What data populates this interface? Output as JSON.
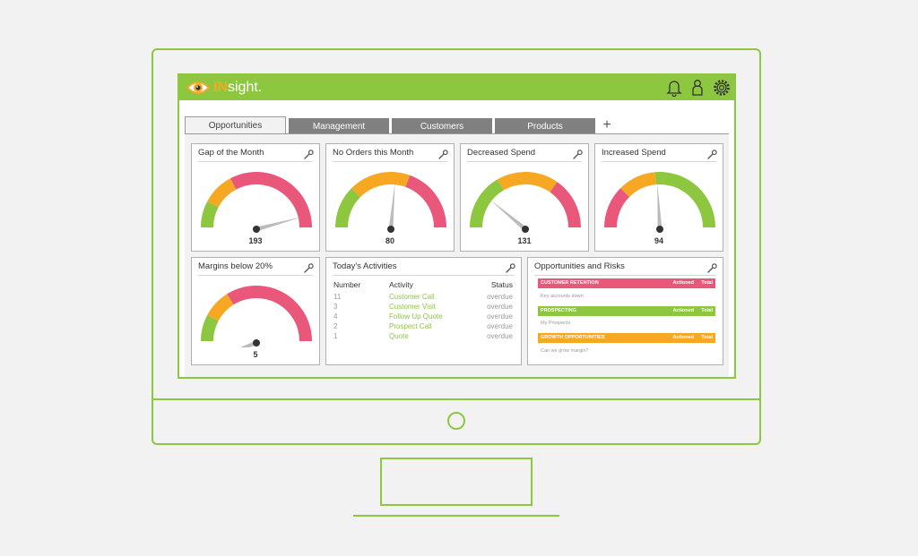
{
  "app": {
    "logo_prefix": "IN",
    "logo_suffix": "sight."
  },
  "header_icons": [
    "bell-icon",
    "user-icon",
    "gear-icon"
  ],
  "tabs": [
    {
      "label": "Opportunities",
      "active": true
    },
    {
      "label": "Management",
      "active": false
    },
    {
      "label": "Customers",
      "active": false
    },
    {
      "label": "Products",
      "active": false
    }
  ],
  "add_tab_label": "+",
  "gauges": [
    {
      "title": "Gap of the Month",
      "value": "193"
    },
    {
      "title": "No Orders this Month",
      "value": "80"
    },
    {
      "title": "Decreased Spend",
      "value": "131"
    },
    {
      "title": "Increased Spend",
      "value": "94"
    },
    {
      "title": "Margins below 20%",
      "value": "5"
    }
  ],
  "activities": {
    "title": "Today's Activities",
    "headers": {
      "number": "Number",
      "activity": "Activity",
      "status": "Status"
    },
    "rows": [
      {
        "number": "11",
        "activity": "Customer Call",
        "status": "overdue"
      },
      {
        "number": "3",
        "activity": "Customer Visit",
        "status": "overdue"
      },
      {
        "number": "4",
        "activity": "Follow Up Quote",
        "status": "overdue"
      },
      {
        "number": "2",
        "activity": "Prospect Call",
        "status": "overdue"
      },
      {
        "number": "1",
        "activity": "Quote",
        "status": "overdue"
      }
    ]
  },
  "risks": {
    "title": "Opportunities and Risks",
    "items": [
      {
        "label": "CUSTOMER RETENTION",
        "actioned": "Actioned",
        "total": "Total",
        "desc": "Key accounts down",
        "color": "#e9587a"
      },
      {
        "label": "PROSPECTING",
        "actioned": "Actioned",
        "total": "Total",
        "desc": "My Prospects",
        "color": "#8dc63f"
      },
      {
        "label": "GROWTH OPPORTUNITIES",
        "actioned": "Actioned",
        "total": "Total",
        "desc": "Can we grow margin?",
        "color": "#f7a823"
      }
    ]
  },
  "colors": {
    "brand_green": "#8dc63f",
    "orange": "#f7a823",
    "pink": "#e9587a",
    "tab_gray": "#808080"
  }
}
